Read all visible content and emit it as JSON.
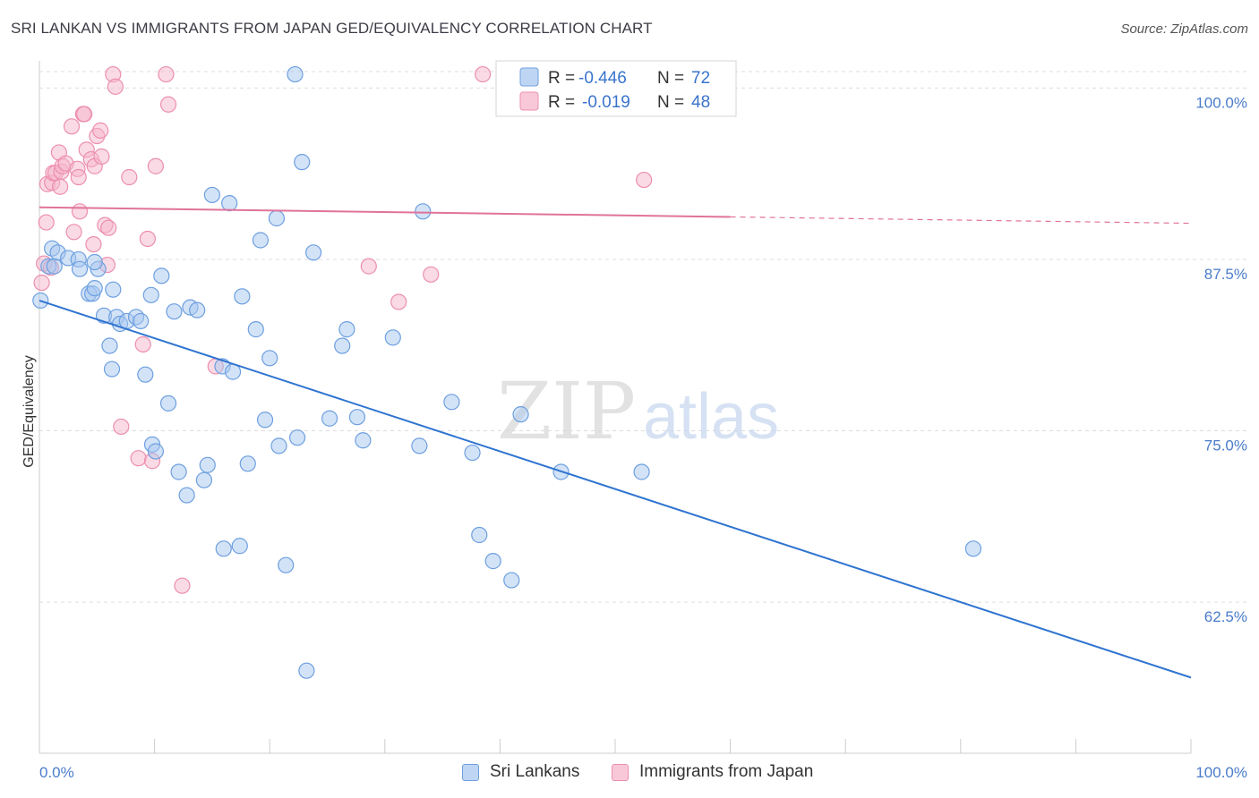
{
  "header": {
    "title": "SRI LANKAN VS IMMIGRANTS FROM JAPAN GED/EQUIVALENCY CORRELATION CHART",
    "source": "Source: ZipAtlas.com"
  },
  "watermark": {
    "zip": "ZIP",
    "atlas": "atlas"
  },
  "legend_top": {
    "rows": [
      {
        "r_label": "R = ",
        "r_value": "-0.446",
        "n_label": "N = ",
        "n_value": "72"
      },
      {
        "r_label": "R = ",
        "r_value": "-0.019",
        "n_label": "N = ",
        "n_value": "48"
      }
    ]
  },
  "legend_bottom": {
    "series_1": "Sri Lankans",
    "series_2": "Immigrants from Japan"
  },
  "colors": {
    "blue_fill": "#a8c8f0",
    "blue_stroke": "#6d9fe0",
    "blue_line": "#2f74d0",
    "pink_fill": "#f6b6cb",
    "pink_stroke": "#ec8fae",
    "pink_line": "#e0739a",
    "tick_text": "#4a7cc9",
    "grid": "#dddddd"
  },
  "chart_data": {
    "type": "scatter",
    "title": "SRI LANKAN VS IMMIGRANTS FROM JAPAN GED/EQUIVALENCY CORRELATION CHART",
    "xlabel": "",
    "ylabel": "GED/Equivalency",
    "x_tick_labels": [
      "0.0%",
      "100.0%"
    ],
    "y_tick_labels": [
      "100.0%",
      "87.5%",
      "75.0%",
      "62.5%"
    ],
    "y_ticks": [
      100.0,
      87.5,
      75.0,
      62.5
    ],
    "xlim": [
      0,
      100
    ],
    "ylim": [
      52,
      101.2
    ],
    "grid": true,
    "legend_position": "top-center",
    "series": [
      {
        "name": "Sri Lankans",
        "r": -0.446,
        "n": 72,
        "trend": {
          "x0": 0,
          "y0": 84.5,
          "x1": 100,
          "y1": 57.0,
          "dashed_from": null
        },
        "points": [
          [
            0.1,
            84.5
          ],
          [
            0.8,
            87.0
          ],
          [
            1.1,
            88.3
          ],
          [
            1.3,
            87.0
          ],
          [
            1.6,
            88.0
          ],
          [
            2.5,
            87.6
          ],
          [
            3.4,
            87.5
          ],
          [
            3.5,
            86.8
          ],
          [
            4.3,
            85.0
          ],
          [
            4.6,
            85.0
          ],
          [
            4.8,
            85.4
          ],
          [
            5.1,
            86.8
          ],
          [
            5.6,
            83.4
          ],
          [
            6.1,
            81.2
          ],
          [
            6.3,
            79.5
          ],
          [
            6.7,
            83.3
          ],
          [
            7.0,
            82.8
          ],
          [
            7.6,
            83.0
          ],
          [
            8.4,
            83.3
          ],
          [
            8.8,
            83.0
          ],
          [
            9.2,
            79.1
          ],
          [
            9.7,
            84.9
          ],
          [
            9.8,
            74.0
          ],
          [
            10.1,
            73.5
          ],
          [
            10.6,
            86.3
          ],
          [
            11.2,
            77.0
          ],
          [
            11.7,
            83.7
          ],
          [
            12.1,
            72.0
          ],
          [
            12.8,
            70.3
          ],
          [
            13.1,
            84.0
          ],
          [
            13.7,
            83.8
          ],
          [
            14.3,
            71.4
          ],
          [
            14.6,
            72.5
          ],
          [
            15.0,
            92.2
          ],
          [
            15.9,
            79.7
          ],
          [
            16.0,
            66.4
          ],
          [
            16.5,
            91.6
          ],
          [
            16.8,
            79.3
          ],
          [
            17.4,
            66.6
          ],
          [
            18.1,
            72.6
          ],
          [
            18.8,
            82.4
          ],
          [
            19.2,
            88.9
          ],
          [
            19.6,
            75.8
          ],
          [
            20.0,
            80.3
          ],
          [
            20.6,
            90.5
          ],
          [
            20.8,
            73.9
          ],
          [
            21.4,
            65.2
          ],
          [
            22.4,
            74.5
          ],
          [
            22.8,
            94.6
          ],
          [
            23.2,
            57.5
          ],
          [
            23.8,
            88.0
          ],
          [
            25.2,
            75.9
          ],
          [
            26.3,
            81.2
          ],
          [
            26.7,
            82.4
          ],
          [
            27.6,
            76.0
          ],
          [
            28.1,
            74.3
          ],
          [
            30.7,
            81.8
          ],
          [
            33.0,
            73.9
          ],
          [
            33.3,
            91.0
          ],
          [
            35.8,
            77.1
          ],
          [
            37.6,
            73.4
          ],
          [
            38.2,
            67.4
          ],
          [
            39.4,
            65.5
          ],
          [
            41.0,
            64.1
          ],
          [
            41.8,
            76.2
          ],
          [
            45.3,
            72.0
          ],
          [
            52.3,
            72.0
          ],
          [
            81.1,
            66.4
          ],
          [
            4.8,
            87.3
          ],
          [
            22.2,
            101.0
          ],
          [
            17.6,
            84.8
          ],
          [
            6.4,
            85.3
          ]
        ]
      },
      {
        "name": "Immigrants from Japan",
        "r": -0.019,
        "n": 48,
        "trend": {
          "x0": 0,
          "y0": 91.3,
          "x1": 60.0,
          "y1": 90.6,
          "dashed_from": 60.0
        },
        "points": [
          [
            0.2,
            85.8
          ],
          [
            0.6,
            90.2
          ],
          [
            0.7,
            93.0
          ],
          [
            1.1,
            93.1
          ],
          [
            1.2,
            93.8
          ],
          [
            1.4,
            93.8
          ],
          [
            1.7,
            95.3
          ],
          [
            1.8,
            92.8
          ],
          [
            1.9,
            93.9
          ],
          [
            2.0,
            94.3
          ],
          [
            2.3,
            94.5
          ],
          [
            2.8,
            97.2
          ],
          [
            3.0,
            89.5
          ],
          [
            3.3,
            94.1
          ],
          [
            3.4,
            93.5
          ],
          [
            3.5,
            91.0
          ],
          [
            3.8,
            98.1
          ],
          [
            3.9,
            98.1
          ],
          [
            4.1,
            95.5
          ],
          [
            4.5,
            94.8
          ],
          [
            4.7,
            88.6
          ],
          [
            4.8,
            94.3
          ],
          [
            5.0,
            96.5
          ],
          [
            5.3,
            96.9
          ],
          [
            5.4,
            95.0
          ],
          [
            5.7,
            90.0
          ],
          [
            5.9,
            87.1
          ],
          [
            6.0,
            89.8
          ],
          [
            6.4,
            101.0
          ],
          [
            6.6,
            100.1
          ],
          [
            7.1,
            75.3
          ],
          [
            7.8,
            93.5
          ],
          [
            8.6,
            73.0
          ],
          [
            9.0,
            81.3
          ],
          [
            9.4,
            89.0
          ],
          [
            9.8,
            72.8
          ],
          [
            10.1,
            94.3
          ],
          [
            11.0,
            101.0
          ],
          [
            11.2,
            98.8
          ],
          [
            12.4,
            63.7
          ],
          [
            15.3,
            79.7
          ],
          [
            28.6,
            87.0
          ],
          [
            31.2,
            84.4
          ],
          [
            34.0,
            86.4
          ],
          [
            38.5,
            101.0
          ],
          [
            52.5,
            93.3
          ],
          [
            0.4,
            87.2
          ],
          [
            1.0,
            86.9
          ]
        ]
      }
    ]
  }
}
